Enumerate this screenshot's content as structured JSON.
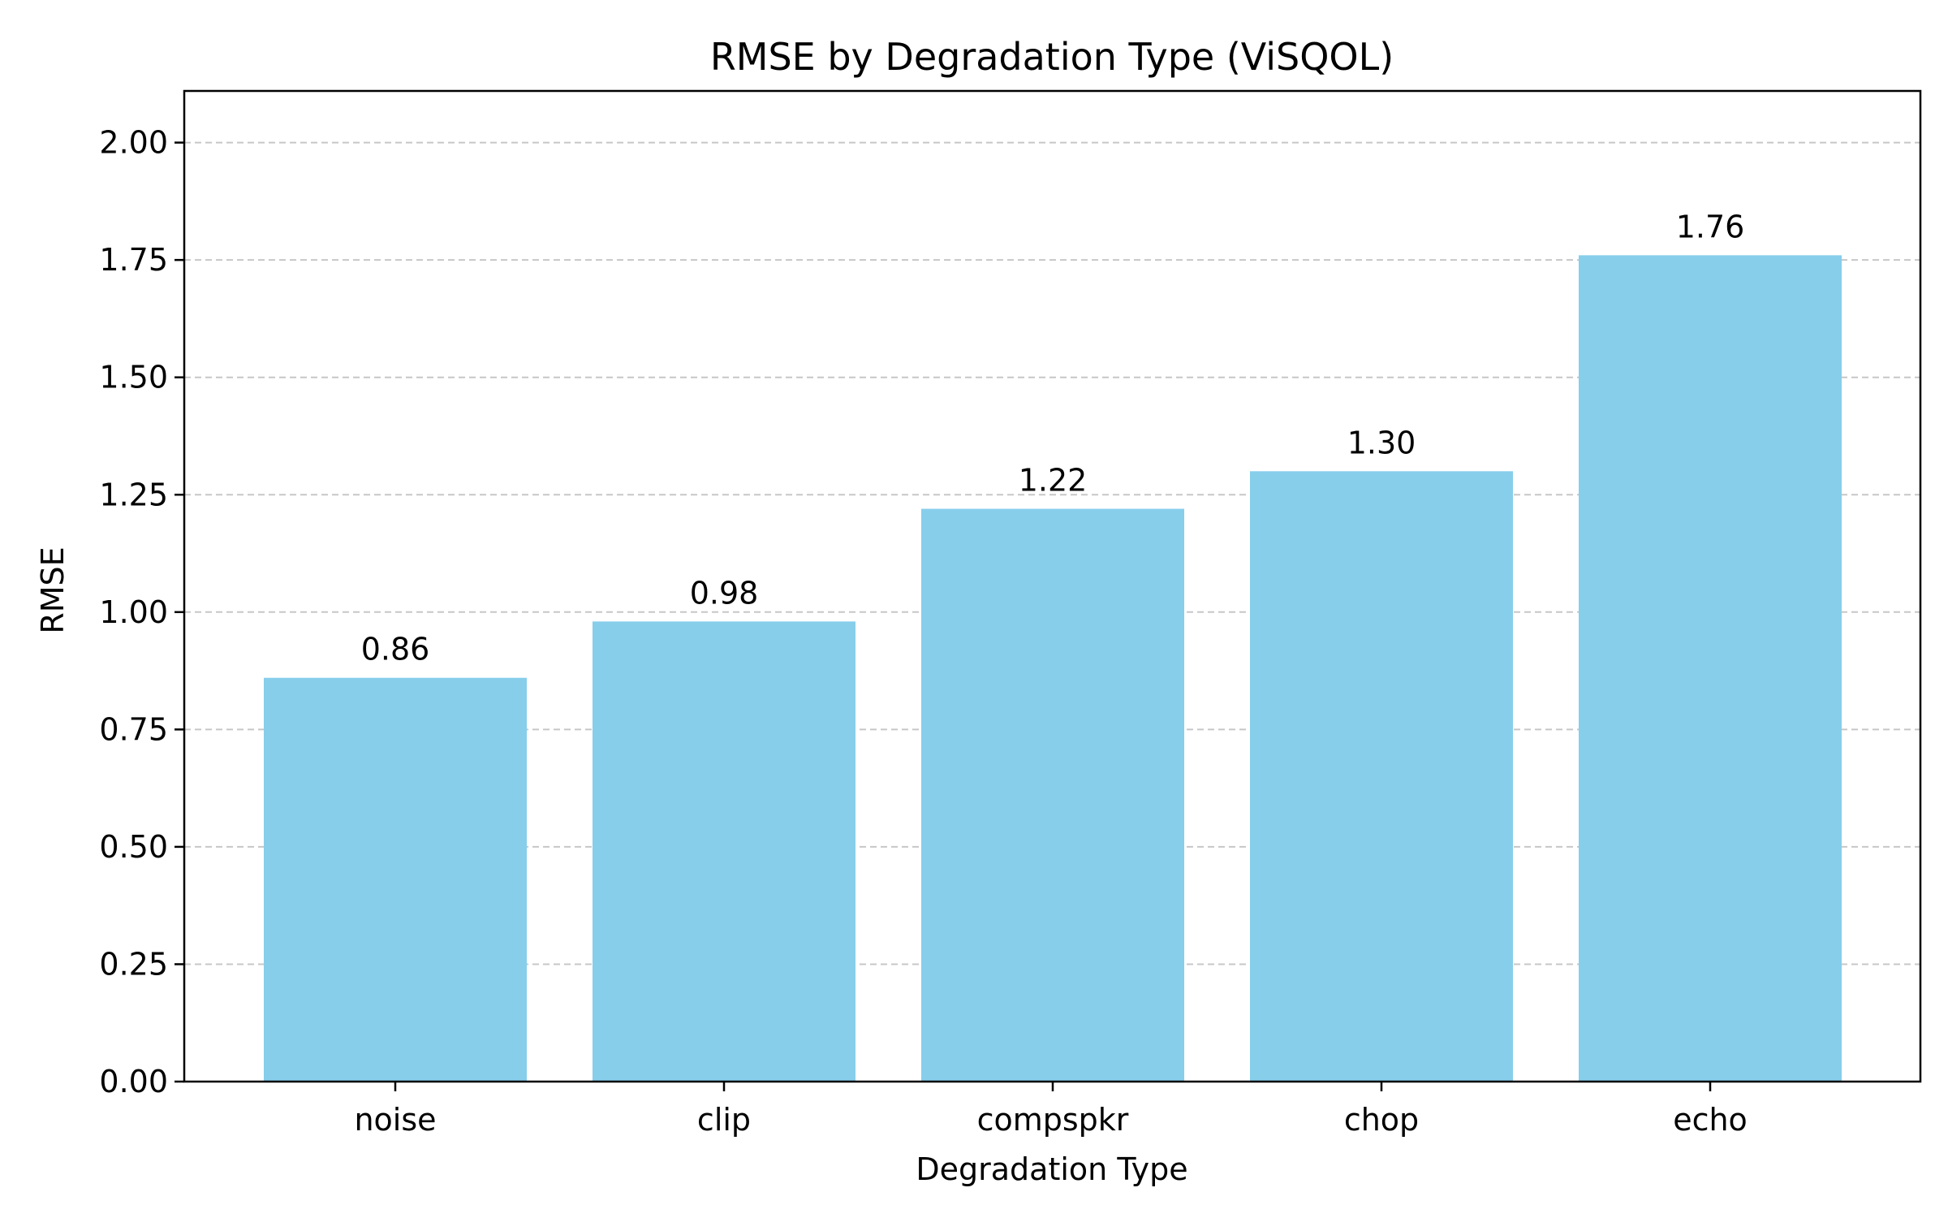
{
  "chart_data": {
    "type": "bar",
    "title": "RMSE by Degradation Type (ViSQOL)",
    "xlabel": "Degradation Type",
    "ylabel": "RMSE",
    "categories": [
      "noise",
      "clip",
      "compspkr",
      "chop",
      "echo"
    ],
    "values": [
      0.86,
      0.98,
      1.22,
      1.3,
      1.76
    ],
    "value_labels": [
      "0.86",
      "0.98",
      "1.22",
      "1.30",
      "1.76"
    ],
    "ylim": [
      0,
      2.11
    ],
    "yticks": [
      0,
      0.25,
      0.5,
      0.75,
      1.0,
      1.25,
      1.5,
      1.75,
      2.0
    ],
    "ytick_labels": [
      "0.00",
      "0.25",
      "0.50",
      "0.75",
      "1.00",
      "1.25",
      "1.50",
      "1.75",
      "2.00"
    ],
    "grid": "y-dashed",
    "bar_color": "#87CEEB"
  }
}
